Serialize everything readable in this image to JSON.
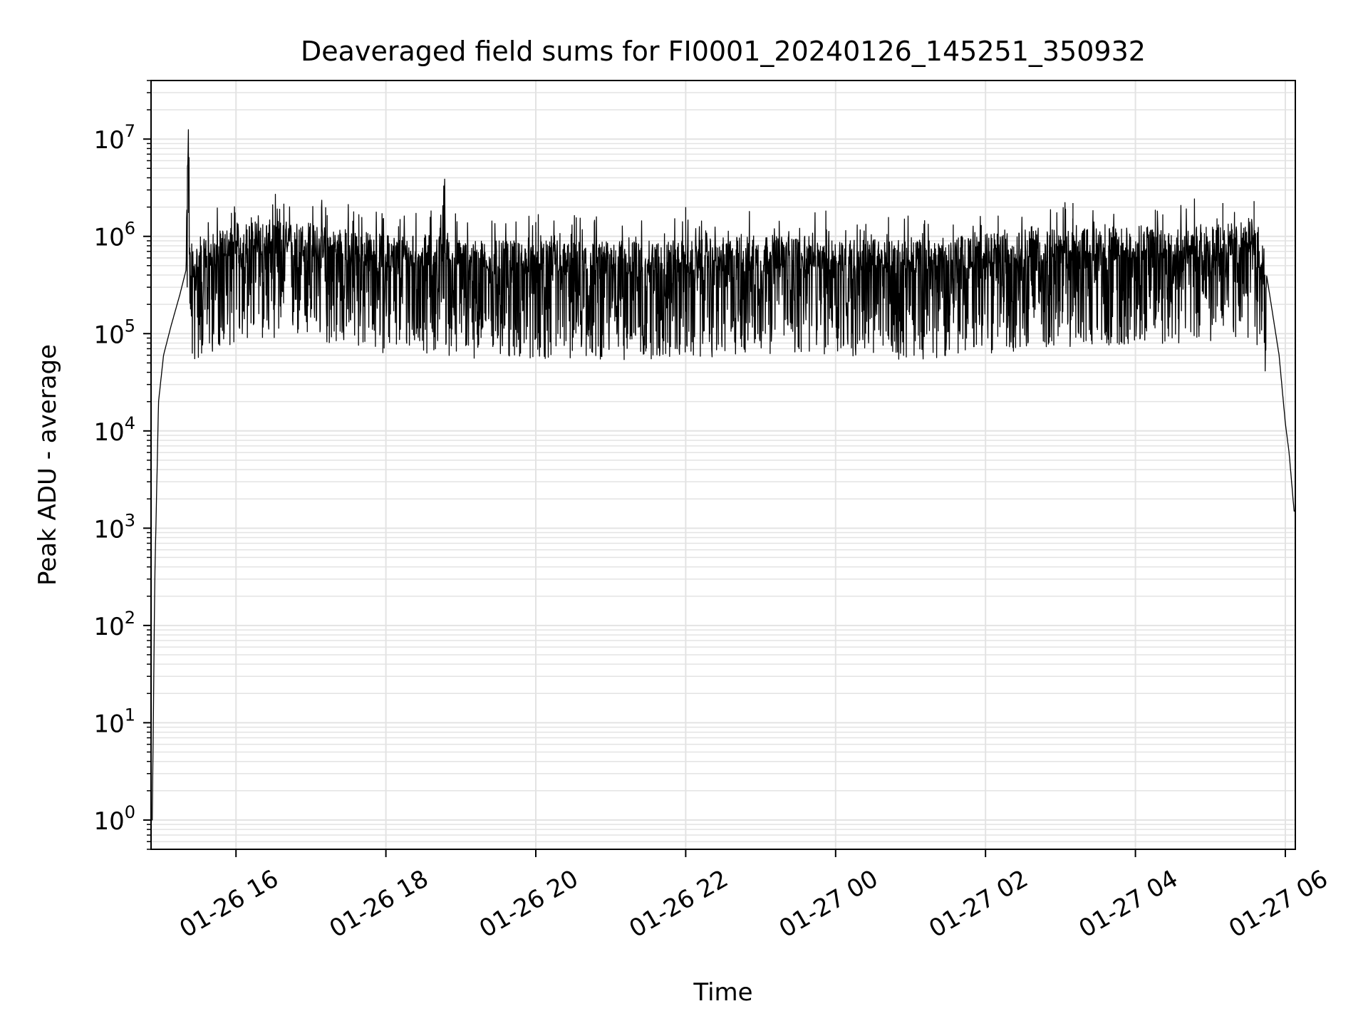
{
  "chart_data": {
    "type": "line",
    "title": "Deaveraged field sums for FI0001_20240126_145251_350932",
    "xlabel": "Time",
    "ylabel": "Peak ADU - average",
    "yscale": "log",
    "ylim": [
      0.5,
      40000000
    ],
    "xlim": [
      "2024-01-26 14:52",
      "2024-01-27 06:08"
    ],
    "x_ticks": [
      {
        "time": "2024-01-26 16:00",
        "label": "01-26 16"
      },
      {
        "time": "2024-01-26 18:00",
        "label": "01-26 18"
      },
      {
        "time": "2024-01-26 20:00",
        "label": "01-26 20"
      },
      {
        "time": "2024-01-26 22:00",
        "label": "01-26 22"
      },
      {
        "time": "2024-01-27 00:00",
        "label": "01-27 00"
      },
      {
        "time": "2024-01-27 02:00",
        "label": "01-27 02"
      },
      {
        "time": "2024-01-27 04:00",
        "label": "01-27 04"
      },
      {
        "time": "2024-01-27 06:00",
        "label": "01-27 06"
      }
    ],
    "y_ticks": [
      {
        "value": 1,
        "base": "10",
        "exp": "0"
      },
      {
        "value": 10,
        "base": "10",
        "exp": "1"
      },
      {
        "value": 100,
        "base": "10",
        "exp": "2"
      },
      {
        "value": 1000,
        "base": "10",
        "exp": "3"
      },
      {
        "value": 10000,
        "base": "10",
        "exp": "4"
      },
      {
        "value": 100000,
        "base": "10",
        "exp": "5"
      },
      {
        "value": 1000000,
        "base": "10",
        "exp": "6"
      },
      {
        "value": 10000000,
        "base": "10",
        "exp": "7"
      }
    ],
    "grid": true,
    "line_color": "#000000",
    "grid_color": "#e3e3e3",
    "series": [
      {
        "values_description_free": true,
        "points": [
          [
            "2024-01-26 14:53",
            1
          ],
          [
            "2024-01-26 14:55",
            300
          ],
          [
            "2024-01-26 14:58",
            20000
          ],
          [
            "2024-01-26 15:02",
            60000
          ],
          [
            "2024-01-26 15:08",
            120000
          ],
          [
            "2024-01-26 15:15",
            250000
          ],
          [
            "2024-01-26 15:20",
            450000
          ],
          [
            "2024-01-26 15:22",
            19000000
          ],
          [
            "2024-01-26 15:23",
            500000
          ],
          [
            "2024-01-26 15:40",
            700000
          ],
          [
            "2024-01-26 16:00",
            900000
          ],
          [
            "2024-01-26 16:30",
            1000000
          ],
          [
            "2024-01-26 17:00",
            900000
          ],
          [
            "2024-01-26 17:30",
            800000
          ],
          [
            "2024-01-26 18:00",
            700000
          ],
          [
            "2024-01-26 18:45",
            700000
          ],
          [
            "2024-01-26 18:47",
            3200000
          ],
          [
            "2024-01-26 18:48",
            650000
          ],
          [
            "2024-01-26 19:30",
            600000
          ],
          [
            "2024-01-26 20:00",
            600000
          ],
          [
            "2024-01-26 21:00",
            600000
          ],
          [
            "2024-01-26 22:00",
            600000
          ],
          [
            "2024-01-26 23:00",
            700000
          ],
          [
            "2024-01-27 00:00",
            650000
          ],
          [
            "2024-01-27 01:00",
            600000
          ],
          [
            "2024-01-27 02:00",
            700000
          ],
          [
            "2024-01-27 03:00",
            800000
          ],
          [
            "2024-01-27 04:00",
            850000
          ],
          [
            "2024-01-27 05:00",
            900000
          ],
          [
            "2024-01-27 05:35",
            950000
          ],
          [
            "2024-01-27 05:45",
            400000
          ],
          [
            "2024-01-27 05:55",
            60000
          ],
          [
            "2024-01-27 06:00",
            12000
          ],
          [
            "2024-01-27 06:03",
            6000
          ],
          [
            "2024-01-27 06:07",
            1500
          ]
        ]
      }
    ]
  }
}
